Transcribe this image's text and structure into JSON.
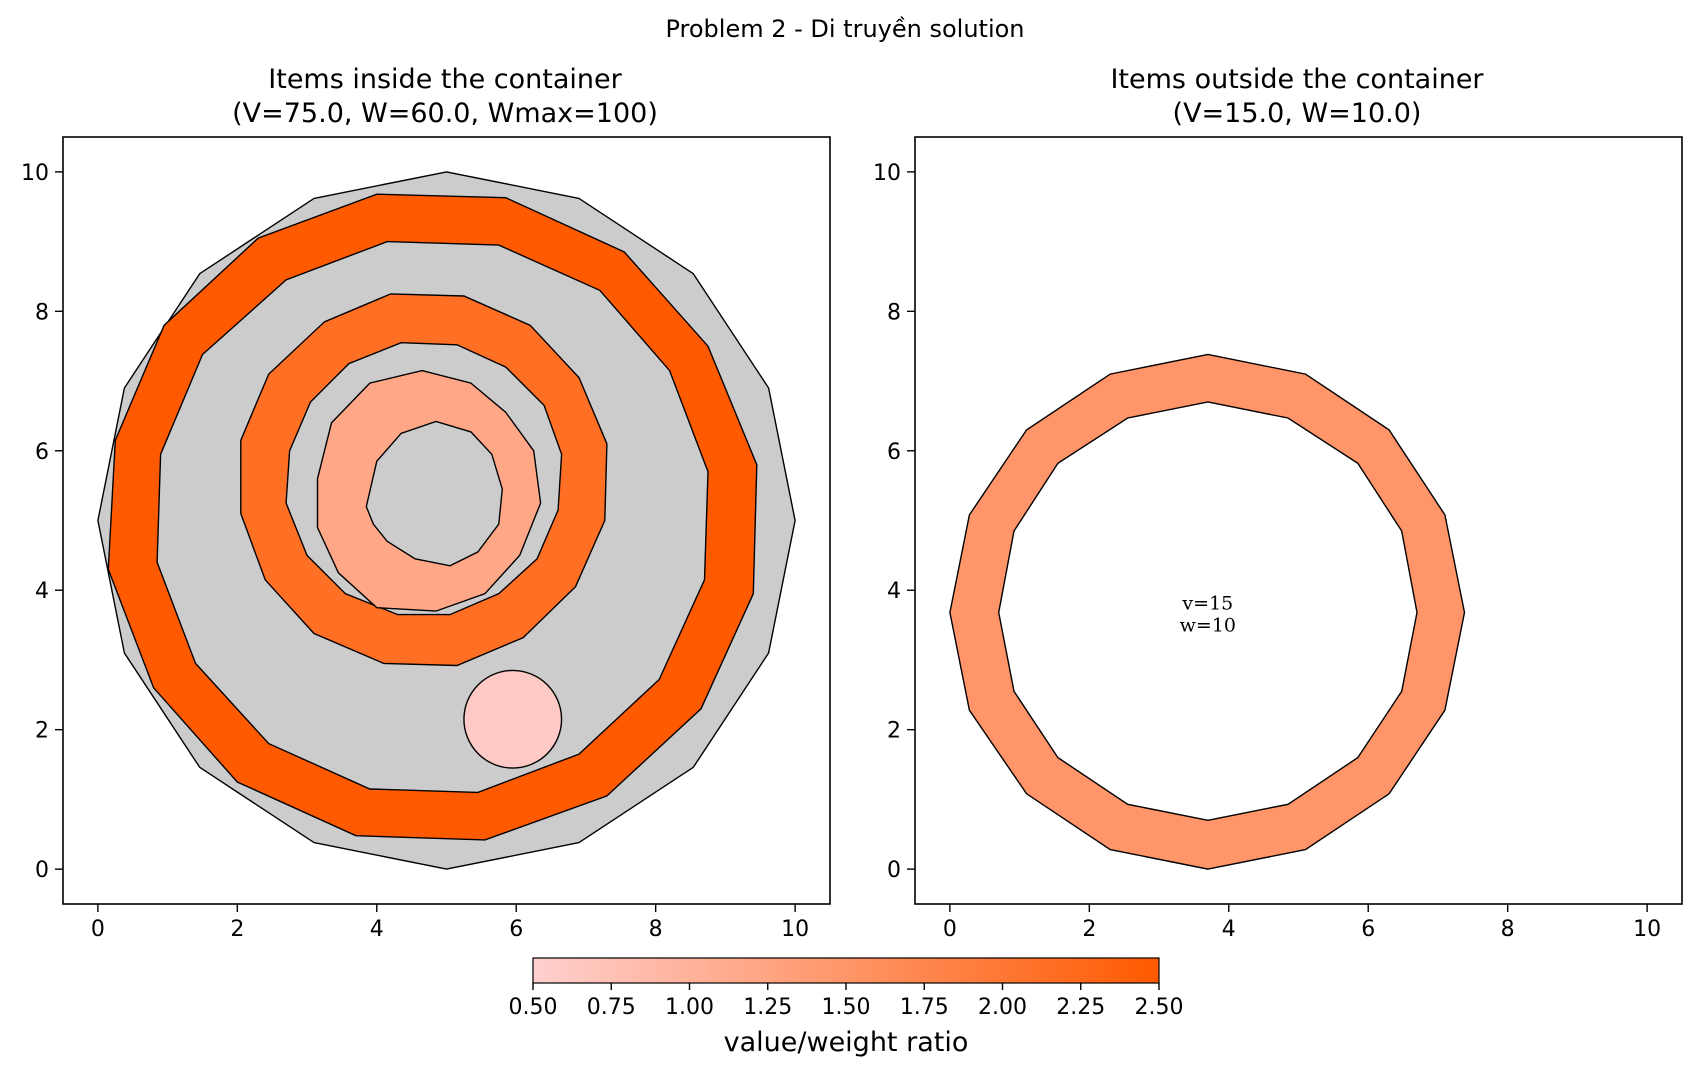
{
  "suptitle": "Problem 2 - Di truyền solution",
  "chart_data": [
    {
      "type": "polygon-packing",
      "title_line1": "Items inside the container",
      "title_line2": "(V=75.0, W=60.0, Wmax=100)",
      "xlim": [
        -0.5,
        10.5
      ],
      "ylim": [
        -0.5,
        10.5
      ],
      "xticks": [
        0,
        2,
        4,
        6,
        8,
        10
      ],
      "yticks": [
        0,
        2,
        4,
        6,
        8,
        10
      ],
      "container": {
        "fill": "#cccccc",
        "points": [
          [
            5.0,
            0.0
          ],
          [
            6.9,
            0.38
          ],
          [
            8.54,
            1.46
          ],
          [
            9.62,
            3.1
          ],
          [
            10.0,
            5.0
          ],
          [
            9.62,
            6.9
          ],
          [
            8.54,
            8.54
          ],
          [
            6.9,
            9.62
          ],
          [
            5.0,
            10.0
          ],
          [
            3.1,
            9.62
          ],
          [
            1.46,
            8.54
          ],
          [
            0.38,
            6.9
          ],
          [
            0.0,
            5.0
          ],
          [
            0.38,
            3.1
          ],
          [
            1.46,
            1.46
          ],
          [
            3.1,
            0.38
          ]
        ]
      },
      "items": [
        {
          "ratio": 2.5,
          "outer": [
            [
              0.15,
              4.3
            ],
            [
              0.25,
              6.15
            ],
            [
              0.95,
              7.8
            ],
            [
              2.3,
              9.05
            ],
            [
              4.0,
              9.68
            ],
            [
              5.85,
              9.63
            ],
            [
              7.55,
              8.85
            ],
            [
              8.75,
              7.5
            ],
            [
              9.45,
              5.8
            ],
            [
              9.4,
              3.95
            ],
            [
              8.65,
              2.3
            ],
            [
              7.3,
              1.05
            ],
            [
              5.55,
              0.42
            ],
            [
              3.7,
              0.48
            ],
            [
              2.0,
              1.25
            ],
            [
              0.8,
              2.6
            ]
          ],
          "inner": [
            [
              0.85,
              4.4
            ],
            [
              0.9,
              5.95
            ],
            [
              1.5,
              7.38
            ],
            [
              2.7,
              8.45
            ],
            [
              4.15,
              9.0
            ],
            [
              5.75,
              8.95
            ],
            [
              7.2,
              8.3
            ],
            [
              8.2,
              7.15
            ],
            [
              8.75,
              5.7
            ],
            [
              8.7,
              4.15
            ],
            [
              8.05,
              2.72
            ],
            [
              6.9,
              1.65
            ],
            [
              5.45,
              1.1
            ],
            [
              3.9,
              1.15
            ],
            [
              2.45,
              1.8
            ],
            [
              1.4,
              2.95
            ]
          ]
        },
        {
          "ratio": 2.15,
          "outer": [
            [
              2.05,
              5.1
            ],
            [
              2.05,
              6.15
            ],
            [
              2.45,
              7.1
            ],
            [
              3.25,
              7.85
            ],
            [
              4.2,
              8.25
            ],
            [
              5.25,
              8.22
            ],
            [
              6.2,
              7.8
            ],
            [
              6.9,
              7.05
            ],
            [
              7.3,
              6.1
            ],
            [
              7.27,
              5.0
            ],
            [
              6.85,
              4.05
            ],
            [
              6.1,
              3.32
            ],
            [
              5.15,
              2.92
            ],
            [
              4.1,
              2.95
            ],
            [
              3.1,
              3.38
            ],
            [
              2.4,
              4.15
            ]
          ],
          "inner": [
            [
              2.7,
              5.25
            ],
            [
              2.75,
              6.0
            ],
            [
              3.05,
              6.7
            ],
            [
              3.6,
              7.25
            ],
            [
              4.35,
              7.55
            ],
            [
              5.15,
              7.52
            ],
            [
              5.85,
              7.2
            ],
            [
              6.4,
              6.65
            ],
            [
              6.65,
              5.95
            ],
            [
              6.6,
              5.15
            ],
            [
              6.3,
              4.45
            ],
            [
              5.75,
              3.95
            ],
            [
              5.05,
              3.65
            ],
            [
              4.3,
              3.65
            ],
            [
              3.55,
              3.95
            ],
            [
              3.0,
              4.5
            ]
          ]
        },
        {
          "ratio": 1.2,
          "outer": [
            [
              3.15,
              5.6
            ],
            [
              3.35,
              6.4
            ],
            [
              3.9,
              6.97
            ],
            [
              4.65,
              7.15
            ],
            [
              5.35,
              6.97
            ],
            [
              5.85,
              6.55
            ],
            [
              6.25,
              6.0
            ],
            [
              6.35,
              5.25
            ],
            [
              6.05,
              4.5
            ],
            [
              5.55,
              3.95
            ],
            [
              4.85,
              3.7
            ],
            [
              4.0,
              3.75
            ],
            [
              3.45,
              4.25
            ],
            [
              3.15,
              4.9
            ]
          ],
          "inner": [
            [
              3.85,
              5.2
            ],
            [
              4.0,
              5.85
            ],
            [
              4.35,
              6.25
            ],
            [
              4.85,
              6.42
            ],
            [
              5.35,
              6.27
            ],
            [
              5.65,
              5.95
            ],
            [
              5.8,
              5.45
            ],
            [
              5.75,
              4.95
            ],
            [
              5.45,
              4.55
            ],
            [
              5.05,
              4.35
            ],
            [
              4.55,
              4.45
            ],
            [
              4.15,
              4.7
            ],
            [
              3.95,
              4.95
            ]
          ]
        }
      ],
      "circle_item": {
        "ratio": 0.6,
        "center": [
          5.95,
          2.15
        ],
        "radius": 0.7
      }
    },
    {
      "type": "polygon-packing",
      "title_line1": "Items outside the container",
      "title_line2": "(V=15.0, W=10.0)",
      "xlim": [
        -0.5,
        10.5
      ],
      "ylim": [
        -0.5,
        10.5
      ],
      "xticks": [
        0,
        2,
        4,
        6,
        8,
        10
      ],
      "yticks": [
        0,
        2,
        4,
        6,
        8,
        10
      ],
      "items": [
        {
          "ratio": 1.5,
          "outer": [
            [
              3.7,
              0.0
            ],
            [
              5.1,
              0.28
            ],
            [
              6.3,
              1.08
            ],
            [
              7.1,
              2.28
            ],
            [
              7.38,
              3.68
            ],
            [
              7.1,
              5.08
            ],
            [
              6.3,
              6.3
            ],
            [
              5.1,
              7.1
            ],
            [
              3.7,
              7.38
            ],
            [
              2.3,
              7.1
            ],
            [
              1.1,
              6.3
            ],
            [
              0.28,
              5.08
            ],
            [
              0.0,
              3.68
            ],
            [
              0.28,
              2.28
            ],
            [
              1.1,
              1.08
            ],
            [
              2.3,
              0.28
            ]
          ],
          "inner": [
            [
              3.7,
              0.7
            ],
            [
              4.85,
              0.93
            ],
            [
              5.85,
              1.6
            ],
            [
              6.48,
              2.55
            ],
            [
              6.7,
              3.68
            ],
            [
              6.48,
              4.85
            ],
            [
              5.85,
              5.82
            ],
            [
              4.85,
              6.47
            ],
            [
              3.7,
              6.7
            ],
            [
              2.55,
              6.47
            ],
            [
              1.55,
              5.82
            ],
            [
              0.92,
              4.85
            ],
            [
              0.7,
              3.68
            ],
            [
              0.92,
              2.55
            ],
            [
              1.55,
              1.6
            ],
            [
              2.55,
              0.93
            ]
          ]
        }
      ],
      "label_v": "v=15",
      "label_w": "w=10",
      "label_at": [
        3.7,
        3.68
      ]
    }
  ],
  "colorbar": {
    "min": 0.5,
    "max": 2.5,
    "colors": [
      "#ffd0cf",
      "#ff5a00"
    ],
    "ticks": [
      "0.50",
      "0.75",
      "1.00",
      "1.25",
      "1.50",
      "1.75",
      "2.00",
      "2.25",
      "2.50"
    ],
    "label": "value/weight ratio"
  }
}
